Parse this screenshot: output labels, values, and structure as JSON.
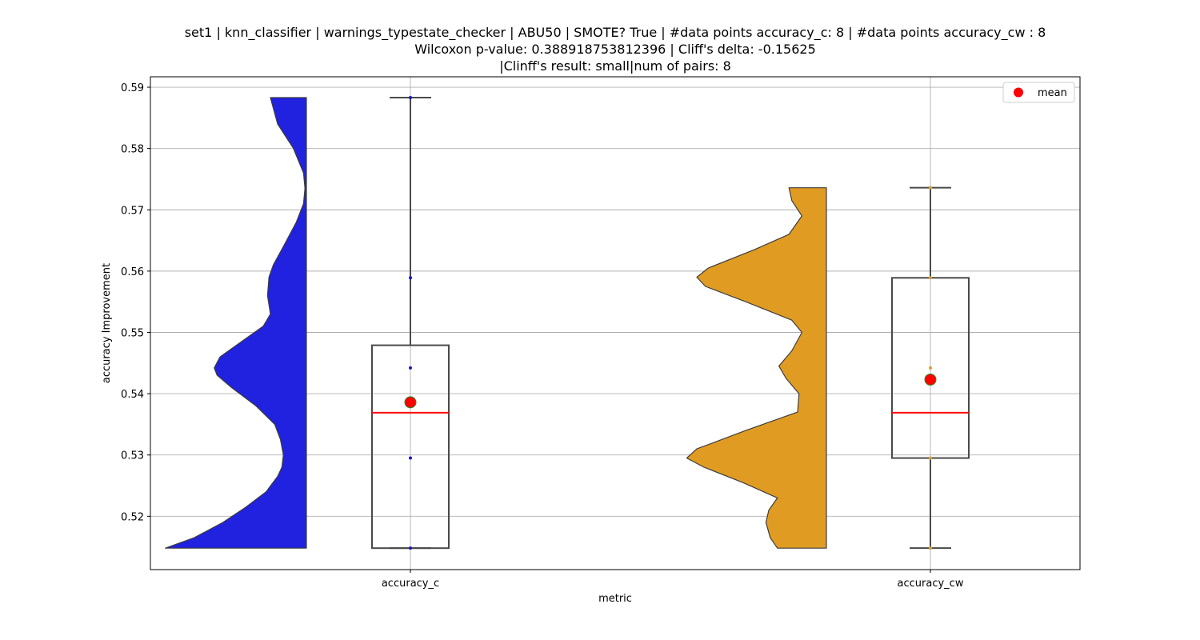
{
  "title": {
    "line1": "set1 | knn_classifier | warnings_typestate_checker | ABU50 | SMOTE? True | #data points accuracy_c: 8 | #data points accuracy_cw : 8",
    "line2": "Wilcoxon p-value: 0.388918753812396 | Cliff's delta: -0.15625",
    "line3": "|Clinff's result: small|num of pairs: 8"
  },
  "chart_data": {
    "type": "violin+box",
    "xlabel": "metric",
    "ylabel": "accuracy Improvement",
    "ylim": [
      0.5113,
      0.5917
    ],
    "yticks": [
      0.52,
      0.53,
      0.54,
      0.55,
      0.56,
      0.57,
      0.58,
      0.59
    ],
    "ytick_labels": [
      "0.52",
      "0.53",
      "0.54",
      "0.55",
      "0.56",
      "0.57",
      "0.58",
      "0.59"
    ],
    "grid": true,
    "legend": {
      "placement": "upper right",
      "entries": [
        {
          "label": "mean",
          "color": "#ff0000",
          "marker": "circle"
        }
      ]
    },
    "categories": [
      "accuracy_c",
      "accuracy_cw"
    ],
    "series": [
      {
        "category": "accuracy_c",
        "color": "#2121e0",
        "point_color": "#1515cc",
        "min": 0.5148,
        "q1": 0.5148,
        "median": 0.5369,
        "q3": 0.5479,
        "max": 0.5883,
        "mean": 0.5386,
        "points": [
          0.5148,
          0.5295,
          0.5442,
          0.5589,
          0.5883
        ],
        "violin_profile": [
          [
            0.5148,
            0.98
          ],
          [
            0.5165,
            0.78
          ],
          [
            0.519,
            0.58
          ],
          [
            0.5215,
            0.42
          ],
          [
            0.524,
            0.28
          ],
          [
            0.5265,
            0.2
          ],
          [
            0.528,
            0.17
          ],
          [
            0.53,
            0.16
          ],
          [
            0.5325,
            0.18
          ],
          [
            0.535,
            0.22
          ],
          [
            0.538,
            0.35
          ],
          [
            0.541,
            0.52
          ],
          [
            0.543,
            0.62
          ],
          [
            0.5442,
            0.64
          ],
          [
            0.546,
            0.6
          ],
          [
            0.548,
            0.48
          ],
          [
            0.551,
            0.3
          ],
          [
            0.553,
            0.25
          ],
          [
            0.556,
            0.27
          ],
          [
            0.559,
            0.26
          ],
          [
            0.561,
            0.23
          ],
          [
            0.564,
            0.16
          ],
          [
            0.568,
            0.07
          ],
          [
            0.571,
            0.02
          ],
          [
            0.5735,
            0.01
          ],
          [
            0.576,
            0.02
          ],
          [
            0.58,
            0.09
          ],
          [
            0.584,
            0.2
          ],
          [
            0.5883,
            0.25
          ]
        ]
      },
      {
        "category": "accuracy_cw",
        "color": "#e09c22",
        "point_color": "#e09c22",
        "min": 0.5148,
        "q1": 0.5295,
        "median": 0.5369,
        "q3": 0.5589,
        "max": 0.5736,
        "mean": 0.5423,
        "points": [
          0.5148,
          0.5295,
          0.5442,
          0.5589,
          0.5736
        ],
        "violin_profile": [
          [
            0.5148,
            0.34
          ],
          [
            0.5165,
            0.39
          ],
          [
            0.519,
            0.42
          ],
          [
            0.521,
            0.4
          ],
          [
            0.523,
            0.34
          ],
          [
            0.5255,
            0.58
          ],
          [
            0.528,
            0.85
          ],
          [
            0.5295,
            0.97
          ],
          [
            0.531,
            0.9
          ],
          [
            0.534,
            0.56
          ],
          [
            0.537,
            0.2
          ],
          [
            0.54,
            0.19
          ],
          [
            0.5425,
            0.28
          ],
          [
            0.5445,
            0.33
          ],
          [
            0.547,
            0.24
          ],
          [
            0.55,
            0.17
          ],
          [
            0.552,
            0.24
          ],
          [
            0.555,
            0.56
          ],
          [
            0.5575,
            0.84
          ],
          [
            0.559,
            0.9
          ],
          [
            0.5605,
            0.82
          ],
          [
            0.5635,
            0.5
          ],
          [
            0.566,
            0.26
          ],
          [
            0.569,
            0.17
          ],
          [
            0.5715,
            0.24
          ],
          [
            0.5736,
            0.26
          ]
        ]
      }
    ]
  }
}
